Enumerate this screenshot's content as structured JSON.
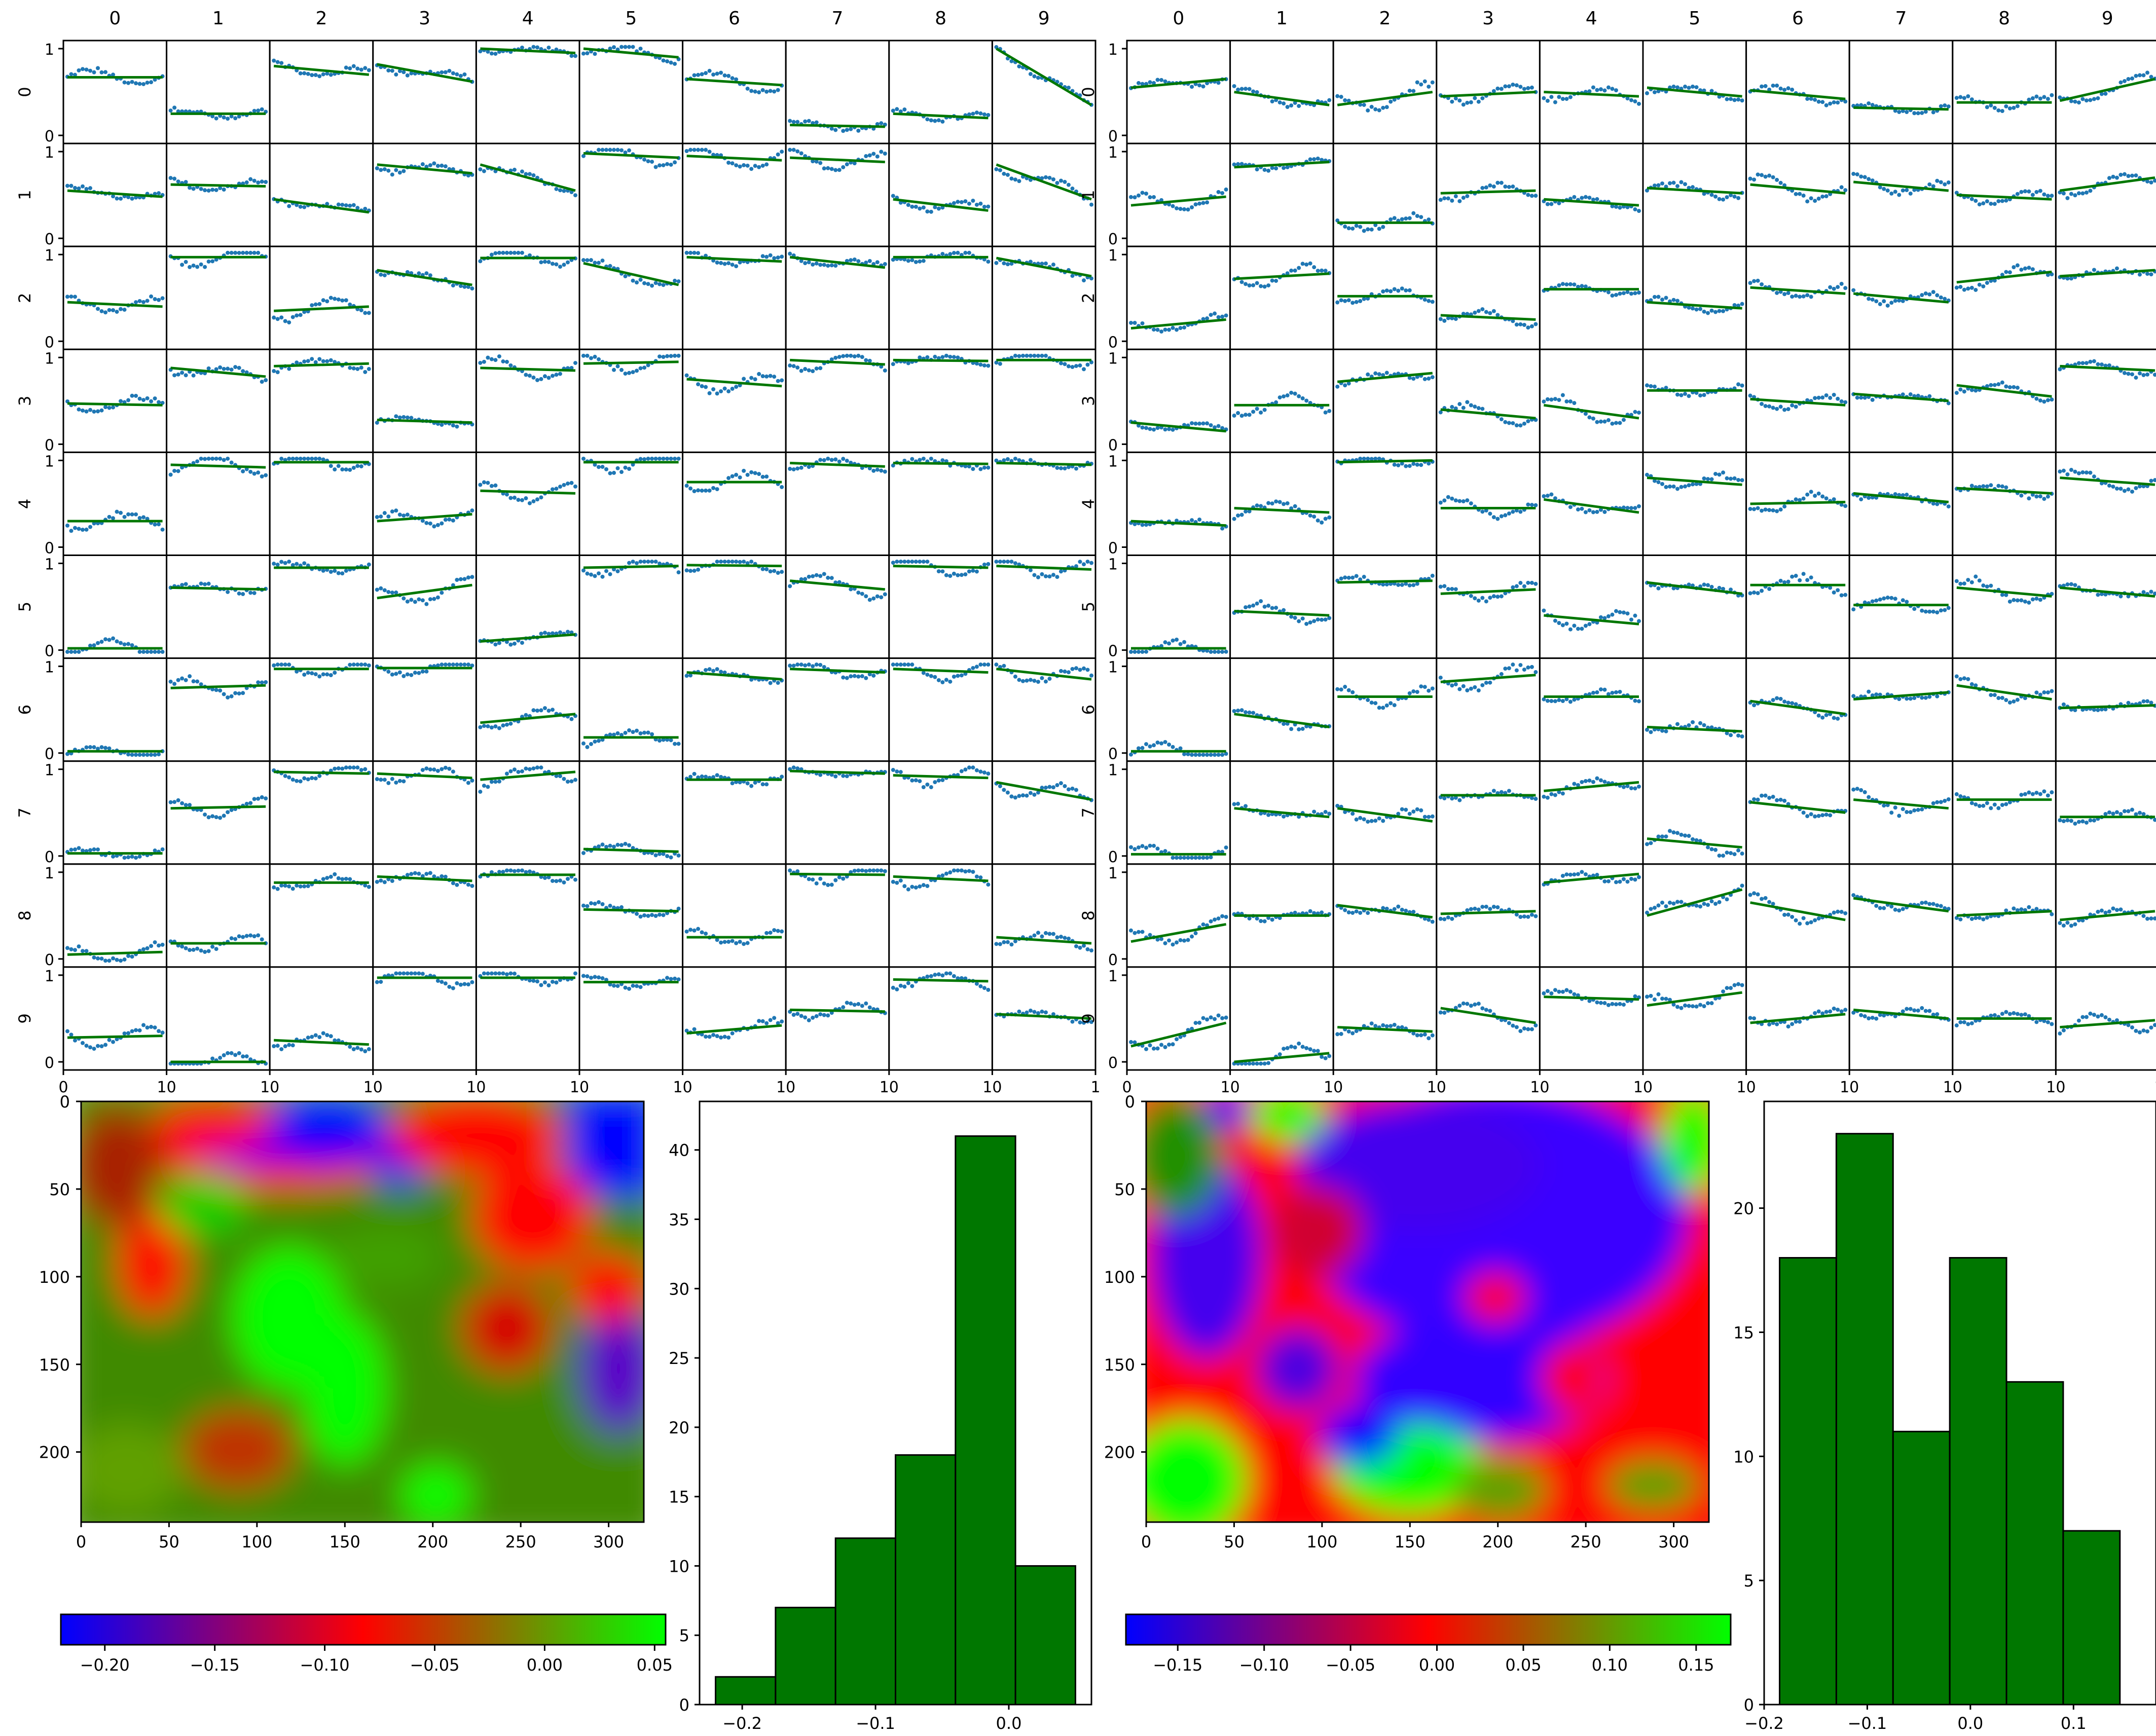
{
  "grid_labels": [
    "0",
    "1",
    "2",
    "3",
    "4",
    "5",
    "6",
    "7",
    "8",
    "9"
  ],
  "colors": {
    "scatter_point": "#1f77b4",
    "fit_line": "#007700",
    "hist_bar": "#007700",
    "colormap": [
      "#0000ff",
      "#ff0000",
      "#00ff00"
    ]
  },
  "chart_data": [
    {
      "type": "scatter",
      "name": "small-multiples-left",
      "layout": "10x10 grid of scatter plots with fitted lines",
      "row_labels": [
        "0",
        "1",
        "2",
        "3",
        "4",
        "5",
        "6",
        "7",
        "8",
        "9"
      ],
      "col_labels": [
        "0",
        "1",
        "2",
        "3",
        "4",
        "5",
        "6",
        "7",
        "8",
        "9"
      ],
      "y_ticks": [
        "0",
        "1"
      ],
      "x_ticks": [
        "0",
        "10",
        "10",
        "10",
        "10",
        "10",
        "10",
        "10",
        "10",
        "10",
        "1"
      ],
      "ylim": [
        0,
        1
      ],
      "xlim": [
        0,
        10
      ],
      "line_start": [
        [
          0.67,
          0.25,
          0.8,
          0.82,
          1.0,
          1.0,
          0.65,
          0.12,
          0.25,
          1.0
        ],
        [
          0.55,
          0.62,
          0.45,
          0.85,
          0.85,
          0.98,
          0.95,
          0.93,
          0.45,
          0.85
        ],
        [
          0.45,
          0.97,
          0.35,
          0.82,
          0.96,
          0.9,
          0.97,
          0.97,
          0.97,
          0.96
        ],
        [
          0.47,
          0.88,
          0.9,
          0.28,
          0.88,
          0.93,
          0.75,
          0.97,
          0.97,
          0.97
        ],
        [
          0.3,
          0.95,
          0.98,
          0.3,
          0.65,
          0.98,
          0.75,
          0.97,
          0.97,
          0.97
        ],
        [
          0.02,
          0.72,
          0.95,
          0.6,
          0.1,
          0.95,
          0.98,
          0.8,
          0.97,
          0.97
        ],
        [
          0.02,
          0.75,
          0.97,
          0.98,
          0.35,
          0.18,
          0.93,
          0.97,
          0.97,
          0.97
        ],
        [
          0.03,
          0.55,
          0.97,
          0.95,
          0.88,
          0.08,
          0.88,
          0.98,
          0.93,
          0.85
        ],
        [
          0.05,
          0.18,
          0.88,
          0.95,
          0.97,
          0.57,
          0.25,
          0.98,
          0.95,
          0.25
        ],
        [
          0.28,
          0.0,
          0.25,
          0.97,
          0.97,
          0.92,
          0.33,
          0.6,
          0.95,
          0.55
        ]
      ],
      "line_end": [
        [
          0.67,
          0.25,
          0.7,
          0.62,
          0.95,
          0.9,
          0.58,
          0.1,
          0.2,
          0.35
        ],
        [
          0.48,
          0.6,
          0.3,
          0.75,
          0.55,
          0.93,
          0.9,
          0.88,
          0.32,
          0.45
        ],
        [
          0.4,
          0.97,
          0.4,
          0.65,
          0.96,
          0.65,
          0.92,
          0.85,
          0.97,
          0.75
        ],
        [
          0.45,
          0.78,
          0.93,
          0.25,
          0.85,
          0.95,
          0.67,
          0.92,
          0.96,
          0.97
        ],
        [
          0.3,
          0.92,
          0.98,
          0.38,
          0.62,
          0.98,
          0.75,
          0.93,
          0.96,
          0.95
        ],
        [
          0.02,
          0.7,
          0.95,
          0.75,
          0.18,
          0.97,
          0.97,
          0.7,
          0.95,
          0.93
        ],
        [
          0.02,
          0.78,
          0.97,
          0.98,
          0.45,
          0.18,
          0.85,
          0.93,
          0.93,
          0.85
        ],
        [
          0.03,
          0.57,
          0.95,
          0.9,
          0.97,
          0.05,
          0.88,
          0.95,
          0.9,
          0.65
        ],
        [
          0.08,
          0.18,
          0.88,
          0.9,
          0.97,
          0.55,
          0.25,
          0.97,
          0.9,
          0.18
        ],
        [
          0.3,
          0.0,
          0.2,
          0.97,
          0.97,
          0.92,
          0.42,
          0.58,
          0.93,
          0.5
        ]
      ]
    },
    {
      "type": "scatter",
      "name": "small-multiples-right",
      "layout": "10x10 grid of scatter plots with fitted lines",
      "row_labels": [
        "0",
        "1",
        "2",
        "3",
        "4",
        "5",
        "6",
        "7",
        "8",
        "9"
      ],
      "col_labels": [
        "0",
        "1",
        "2",
        "3",
        "4",
        "5",
        "6",
        "7",
        "8",
        "9"
      ],
      "y_ticks": [
        "0",
        "1"
      ],
      "x_ticks": [
        "0",
        "10",
        "10",
        "10",
        "10",
        "10",
        "10",
        "10",
        "10",
        "10",
        "1"
      ],
      "ylim": [
        0,
        1
      ],
      "xlim": [
        0,
        10
      ],
      "line_start": [
        [
          0.55,
          0.5,
          0.35,
          0.45,
          0.5,
          0.55,
          0.52,
          0.32,
          0.38,
          0.4
        ],
        [
          0.38,
          0.82,
          0.18,
          0.52,
          0.45,
          0.58,
          0.62,
          0.65,
          0.5,
          0.55
        ],
        [
          0.15,
          0.72,
          0.52,
          0.3,
          0.6,
          0.45,
          0.62,
          0.55,
          0.68,
          0.75
        ],
        [
          0.25,
          0.45,
          0.72,
          0.4,
          0.45,
          0.62,
          0.52,
          0.58,
          0.68,
          0.9
        ],
        [
          0.3,
          0.45,
          0.98,
          0.45,
          0.55,
          0.8,
          0.5,
          0.62,
          0.68,
          0.8
        ],
        [
          0.02,
          0.45,
          0.78,
          0.65,
          0.4,
          0.78,
          0.75,
          0.52,
          0.72,
          0.72
        ],
        [
          0.02,
          0.45,
          0.65,
          0.82,
          0.65,
          0.3,
          0.6,
          0.62,
          0.78,
          0.52
        ],
        [
          0.02,
          0.55,
          0.55,
          0.7,
          0.75,
          0.2,
          0.62,
          0.65,
          0.65,
          0.45
        ],
        [
          0.2,
          0.5,
          0.62,
          0.52,
          0.88,
          0.5,
          0.65,
          0.7,
          0.5,
          0.45
        ],
        [
          0.18,
          0.0,
          0.4,
          0.62,
          0.75,
          0.65,
          0.45,
          0.6,
          0.5,
          0.4
        ]
      ],
      "line_end": [
        [
          0.65,
          0.35,
          0.5,
          0.5,
          0.45,
          0.45,
          0.42,
          0.3,
          0.38,
          0.65
        ],
        [
          0.48,
          0.88,
          0.18,
          0.55,
          0.38,
          0.52,
          0.52,
          0.55,
          0.45,
          0.7
        ],
        [
          0.25,
          0.78,
          0.52,
          0.25,
          0.6,
          0.38,
          0.55,
          0.45,
          0.8,
          0.82
        ],
        [
          0.15,
          0.45,
          0.82,
          0.3,
          0.3,
          0.62,
          0.45,
          0.5,
          0.55,
          0.85
        ],
        [
          0.25,
          0.4,
          1.0,
          0.45,
          0.4,
          0.72,
          0.52,
          0.52,
          0.62,
          0.72
        ],
        [
          0.02,
          0.4,
          0.8,
          0.7,
          0.3,
          0.65,
          0.75,
          0.52,
          0.62,
          0.62
        ],
        [
          0.02,
          0.3,
          0.65,
          0.9,
          0.65,
          0.25,
          0.45,
          0.7,
          0.62,
          0.55
        ],
        [
          0.02,
          0.45,
          0.4,
          0.7,
          0.85,
          0.1,
          0.5,
          0.55,
          0.65,
          0.45
        ],
        [
          0.4,
          0.5,
          0.48,
          0.55,
          0.98,
          0.8,
          0.45,
          0.55,
          0.55,
          0.55
        ],
        [
          0.45,
          0.1,
          0.35,
          0.45,
          0.72,
          0.8,
          0.55,
          0.5,
          0.5,
          0.48
        ]
      ]
    },
    {
      "type": "heatmap",
      "name": "heatmap-left",
      "x_ticks": [
        "0",
        "50",
        "100",
        "150",
        "200",
        "250",
        "300"
      ],
      "y_ticks": [
        "0",
        "50",
        "100",
        "150",
        "200"
      ],
      "xlim": [
        0,
        320
      ],
      "ylim": [
        0,
        240
      ],
      "colorbar_ticks": [
        "−0.20",
        "−0.15",
        "−0.10",
        "−0.05",
        "0.00",
        "0.05"
      ],
      "colorbar_range": [
        -0.22,
        0.055
      ]
    },
    {
      "type": "bar",
      "name": "histogram-left",
      "bin_edges": [
        -0.22,
        -0.175,
        -0.13,
        -0.085,
        -0.04,
        0.005,
        0.05
      ],
      "values": [
        2,
        7,
        12,
        18,
        41,
        10
      ],
      "x_ticks": [
        "−0.2",
        "−0.1",
        "0.0"
      ],
      "y_ticks": [
        "0",
        "5",
        "10",
        "15",
        "20",
        "25",
        "30",
        "35",
        "40"
      ],
      "ylim": [
        0,
        43.5
      ],
      "xlim": [
        -0.232,
        0.062
      ]
    },
    {
      "type": "heatmap",
      "name": "heatmap-right",
      "x_ticks": [
        "0",
        "50",
        "100",
        "150",
        "200",
        "250",
        "300"
      ],
      "y_ticks": [
        "0",
        "50",
        "100",
        "150",
        "200"
      ],
      "xlim": [
        0,
        320
      ],
      "ylim": [
        0,
        240
      ],
      "colorbar_ticks": [
        "−0.15",
        "−0.10",
        "−0.05",
        "0.00",
        "0.05",
        "0.10",
        "0.15"
      ],
      "colorbar_range": [
        -0.18,
        0.17
      ]
    },
    {
      "type": "bar",
      "name": "histogram-right",
      "bin_edges": [
        -0.185,
        -0.13,
        -0.075,
        -0.02,
        0.035,
        0.09,
        0.145
      ],
      "values": [
        18,
        23,
        11,
        18,
        13,
        7
      ],
      "x_ticks": [
        "−0.2",
        "−0.1",
        "0.0",
        "0.1"
      ],
      "y_ticks": [
        "0",
        "5",
        "10",
        "15",
        "20"
      ],
      "ylim": [
        0,
        24.3
      ],
      "xlim": [
        -0.2,
        0.18
      ]
    }
  ]
}
